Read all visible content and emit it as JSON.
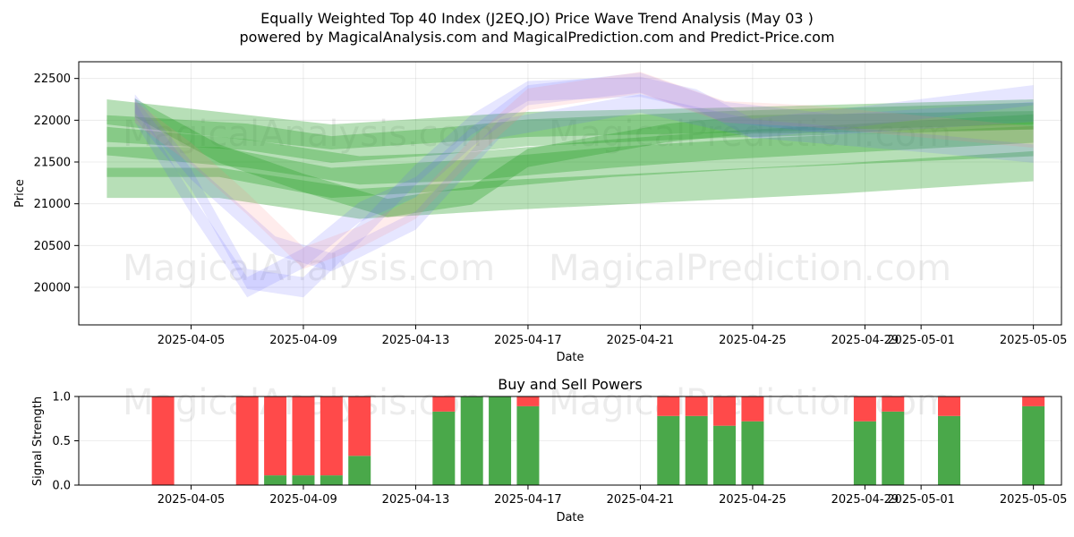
{
  "figure": {
    "title_line1": "Equally Weighted Top 40 Index (J2EQ.JO) Price Wave Trend Analysis (May 03 )",
    "title_line2": "powered by MagicalAnalysis.com and MagicalPrediction.com and Predict-Price.com",
    "watermarks": [
      "MagicalAnalysis.com",
      "MagicalPrediction.com"
    ]
  },
  "chart_data": [
    {
      "type": "area",
      "title": "",
      "xlabel": "Date",
      "ylabel": "Price",
      "x_tick_labels": [
        "2025-04-05",
        "2025-04-09",
        "2025-04-13",
        "2025-04-17",
        "2025-04-21",
        "2025-04-25",
        "2025-04-29",
        "2025-05-01",
        "2025-05-05"
      ],
      "y_ticks": [
        20000,
        20500,
        21000,
        21500,
        22000,
        22500
      ],
      "xlim": [
        "2025-04-01",
        "2025-05-06"
      ],
      "ylim": [
        19550,
        22700
      ],
      "grid": true,
      "colors": {
        "green": "#2ca02c",
        "blue": "#6464ff",
        "red": "#ff8080"
      },
      "series": [
        {
          "color": "green",
          "x": [
            "2025-04-02",
            "2025-04-10",
            "2025-04-17",
            "2025-04-24",
            "2025-05-05"
          ],
          "values": [
            22100,
            21800,
            21950,
            22000,
            22100
          ],
          "band": 150
        },
        {
          "color": "green",
          "x": [
            "2025-04-02",
            "2025-04-07",
            "2025-04-10",
            "2025-04-14",
            "2025-04-17",
            "2025-04-24",
            "2025-05-05"
          ],
          "values": [
            21900,
            21800,
            21650,
            21750,
            21850,
            21950,
            22050
          ],
          "band": 160
        },
        {
          "color": "green",
          "x": [
            "2025-04-02",
            "2025-04-07",
            "2025-04-11",
            "2025-04-15",
            "2025-04-20",
            "2025-04-24",
            "2025-05-05"
          ],
          "values": [
            21750,
            21600,
            21400,
            21450,
            21600,
            21700,
            21900
          ],
          "band": 170
        },
        {
          "color": "green",
          "x": [
            "2025-04-02",
            "2025-04-06",
            "2025-04-10",
            "2025-04-15",
            "2025-04-20",
            "2025-04-25",
            "2025-05-05"
          ],
          "values": [
            21500,
            21500,
            21250,
            21350,
            21500,
            21600,
            21750
          ],
          "band": 180
        },
        {
          "color": "green",
          "x": [
            "2025-04-02",
            "2025-04-06",
            "2025-04-11",
            "2025-04-16",
            "2025-04-22",
            "2025-04-28",
            "2025-05-05"
          ],
          "values": [
            21250,
            21250,
            21000,
            21100,
            21200,
            21300,
            21450
          ],
          "band": 180
        },
        {
          "color": "green",
          "x": [
            "2025-04-03",
            "2025-04-06",
            "2025-04-09",
            "2025-04-12",
            "2025-04-15",
            "2025-04-17",
            "2025-04-22",
            "2025-04-25",
            "2025-05-05"
          ],
          "values": [
            22150,
            21600,
            21250,
            20950,
            21100,
            21550,
            21850,
            21950,
            22000
          ],
          "band": 110
        },
        {
          "color": "blue",
          "x": [
            "2025-04-03",
            "2025-04-05",
            "2025-04-07",
            "2025-04-09",
            "2025-04-11",
            "2025-04-13",
            "2025-04-15",
            "2025-04-17",
            "2025-04-21",
            "2025-04-23",
            "2025-04-25",
            "2025-04-29",
            "2025-05-05"
          ],
          "values": [
            22150,
            21300,
            20100,
            20000,
            20650,
            21350,
            21950,
            22350,
            22400,
            22250,
            21900,
            22050,
            22300
          ],
          "band": 120
        },
        {
          "color": "blue",
          "x": [
            "2025-04-03",
            "2025-04-05",
            "2025-04-07",
            "2025-04-09",
            "2025-04-11",
            "2025-04-13",
            "2025-04-15",
            "2025-04-17",
            "2025-04-21",
            "2025-04-24",
            "2025-04-28",
            "2025-05-05"
          ],
          "values": [
            22100,
            21000,
            20000,
            20350,
            20900,
            21200,
            21800,
            22300,
            22450,
            22100,
            21950,
            22100
          ],
          "band": 120
        },
        {
          "color": "blue",
          "x": [
            "2025-04-03",
            "2025-04-05",
            "2025-04-08",
            "2025-04-10",
            "2025-04-13",
            "2025-04-16",
            "2025-04-21",
            "2025-04-25",
            "2025-05-02",
            "2025-05-05"
          ],
          "values": [
            22200,
            21400,
            20500,
            20300,
            20800,
            21900,
            22200,
            21900,
            21700,
            21600
          ],
          "band": 110
        },
        {
          "color": "red",
          "x": [
            "2025-04-03",
            "2025-04-05",
            "2025-04-07",
            "2025-04-09",
            "2025-04-11",
            "2025-04-13",
            "2025-04-15",
            "2025-04-17",
            "2025-04-21",
            "2025-04-24",
            "2025-04-27",
            "2025-05-05"
          ],
          "values": [
            22100,
            21600,
            21000,
            20350,
            20600,
            20950,
            21650,
            22250,
            22450,
            22100,
            22050,
            21800
          ],
          "band": 130
        }
      ]
    },
    {
      "type": "bar",
      "title": "Buy and Sell Powers",
      "xlabel": "Date",
      "ylabel": "Signal Strength",
      "x_tick_labels": [
        "2025-04-05",
        "2025-04-09",
        "2025-04-13",
        "2025-04-17",
        "2025-04-21",
        "2025-04-25",
        "2025-04-29",
        "2025-05-01",
        "2025-05-05"
      ],
      "y_ticks": [
        "0.0",
        "0.5",
        "1.0"
      ],
      "ylim": [
        0,
        1
      ],
      "grid": true,
      "colors": {
        "buy": "#4aa84a",
        "sell": "#ff4a4a"
      },
      "series": [
        {
          "name": "Buy",
          "x": [
            "2025-04-04",
            "2025-04-07",
            "2025-04-08",
            "2025-04-09",
            "2025-04-10",
            "2025-04-11",
            "2025-04-14",
            "2025-04-15",
            "2025-04-16",
            "2025-04-17",
            "2025-04-22",
            "2025-04-23",
            "2025-04-24",
            "2025-04-25",
            "2025-04-29",
            "2025-04-30",
            "2025-05-02",
            "2025-05-05"
          ],
          "values": [
            0,
            0,
            0.11,
            0.11,
            0.11,
            0.33,
            0.83,
            1.0,
            1.0,
            0.89,
            0.78,
            0.78,
            0.67,
            0.72,
            0.72,
            0.83,
            0.78,
            0.89
          ]
        },
        {
          "name": "Sell",
          "x": [
            "2025-04-04",
            "2025-04-07",
            "2025-04-08",
            "2025-04-09",
            "2025-04-10",
            "2025-04-11",
            "2025-04-14",
            "2025-04-15",
            "2025-04-16",
            "2025-04-17",
            "2025-04-22",
            "2025-04-23",
            "2025-04-24",
            "2025-04-25",
            "2025-04-29",
            "2025-04-30",
            "2025-05-02",
            "2025-05-05"
          ],
          "values": [
            1.0,
            1.0,
            0.89,
            0.89,
            0.89,
            0.67,
            0.17,
            0,
            0,
            0.11,
            0.22,
            0.22,
            0.33,
            0.28,
            0.28,
            0.17,
            0.22,
            0.11
          ]
        }
      ]
    }
  ]
}
